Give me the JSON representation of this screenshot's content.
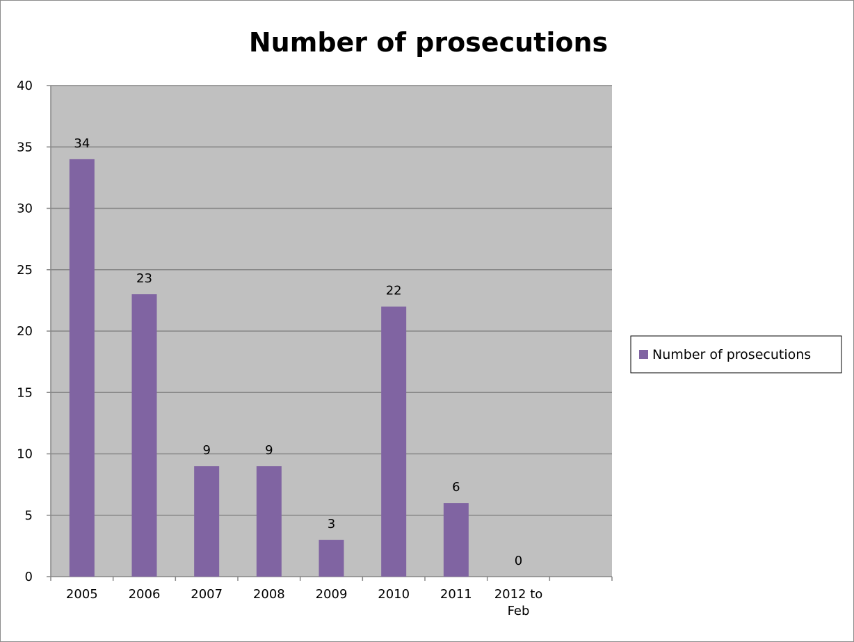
{
  "chart_data": {
    "type": "bar",
    "title": "Number of prosecutions",
    "xlabel": "",
    "ylabel": "",
    "categories": [
      "2005",
      "2006",
      "2007",
      "2008",
      "2009",
      "2010",
      "2011",
      "2012 to Feb",
      ""
    ],
    "series": [
      {
        "name": "Number of prosecutions",
        "values": [
          34,
          23,
          9,
          9,
          3,
          22,
          6,
          0,
          null
        ],
        "color": "#8064a2"
      }
    ],
    "ylim": [
      0,
      40
    ],
    "yticks": [
      "0",
      "5",
      "10",
      "15",
      "20",
      "25",
      "30",
      "35",
      "40"
    ],
    "grid": true,
    "legend_position": "right",
    "plot_background": "#c0c0c0"
  }
}
